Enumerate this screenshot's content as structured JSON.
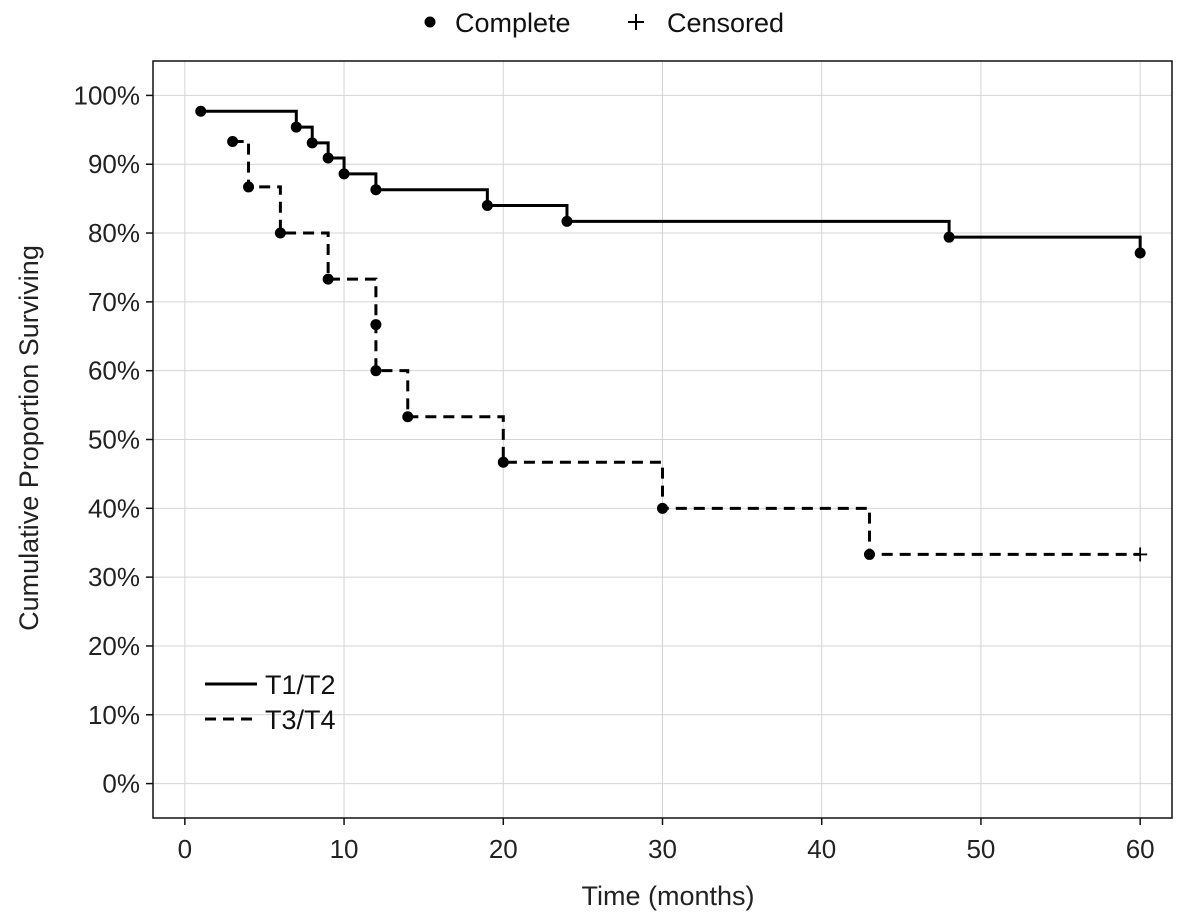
{
  "chart_data": {
    "type": "line",
    "subtype": "kaplan-meier step",
    "title": "",
    "xlabel": "Time (months)",
    "ylabel": "Cumulative Proportion Surviving",
    "xlim": [
      -2,
      62
    ],
    "ylim": [
      -5,
      105
    ],
    "x_ticks": [
      0,
      10,
      20,
      30,
      40,
      50,
      60
    ],
    "x_tick_labels": [
      "0",
      "10",
      "20",
      "30",
      "40",
      "50",
      "60"
    ],
    "y_ticks": [
      0,
      10,
      20,
      30,
      40,
      50,
      60,
      70,
      80,
      90,
      100
    ],
    "y_tick_labels": [
      "0%",
      "10%",
      "20%",
      "30%",
      "40%",
      "50%",
      "60%",
      "70%",
      "80%",
      "90%",
      "100%"
    ],
    "grid": true,
    "marker_legend": {
      "position": "top-center",
      "complete_label": "Complete",
      "censored_label": "Censored"
    },
    "series_legend_position": "bottom-left",
    "series": [
      {
        "name": "T1/T2",
        "line_style": "solid",
        "start": [
          1,
          97.7
        ],
        "steps": [
          [
            7,
            95.4
          ],
          [
            8,
            93.1
          ],
          [
            9,
            90.9
          ],
          [
            10,
            88.6
          ],
          [
            12,
            86.3
          ],
          [
            19,
            84.0
          ],
          [
            24,
            81.7
          ],
          [
            48,
            79.4
          ],
          [
            60,
            77.1
          ]
        ],
        "complete_points": [
          [
            1,
            97.7
          ],
          [
            7,
            95.4
          ],
          [
            8,
            93.1
          ],
          [
            9,
            90.9
          ],
          [
            10,
            88.6
          ],
          [
            12,
            86.3
          ],
          [
            19,
            84.0
          ],
          [
            24,
            81.7
          ],
          [
            48,
            79.4
          ],
          [
            60,
            77.1
          ]
        ],
        "censored_points": []
      },
      {
        "name": "T3/T4",
        "line_style": "dashed",
        "start": [
          3,
          93.3
        ],
        "steps": [
          [
            4,
            86.7
          ],
          [
            6,
            80.0
          ],
          [
            9,
            73.3
          ],
          [
            12,
            60.0
          ],
          [
            14,
            53.3
          ],
          [
            20,
            46.7
          ],
          [
            30,
            40.0
          ],
          [
            43,
            33.3
          ]
        ],
        "end_x": 60,
        "complete_points": [
          [
            3,
            93.3
          ],
          [
            4,
            86.7
          ],
          [
            6,
            80.0
          ],
          [
            9,
            73.3
          ],
          [
            12,
            66.7
          ],
          [
            12,
            60.0
          ],
          [
            14,
            53.3
          ],
          [
            20,
            46.7
          ],
          [
            30,
            40.0
          ],
          [
            43,
            33.3
          ]
        ],
        "censored_points": [
          [
            60,
            33.3
          ]
        ]
      }
    ]
  }
}
